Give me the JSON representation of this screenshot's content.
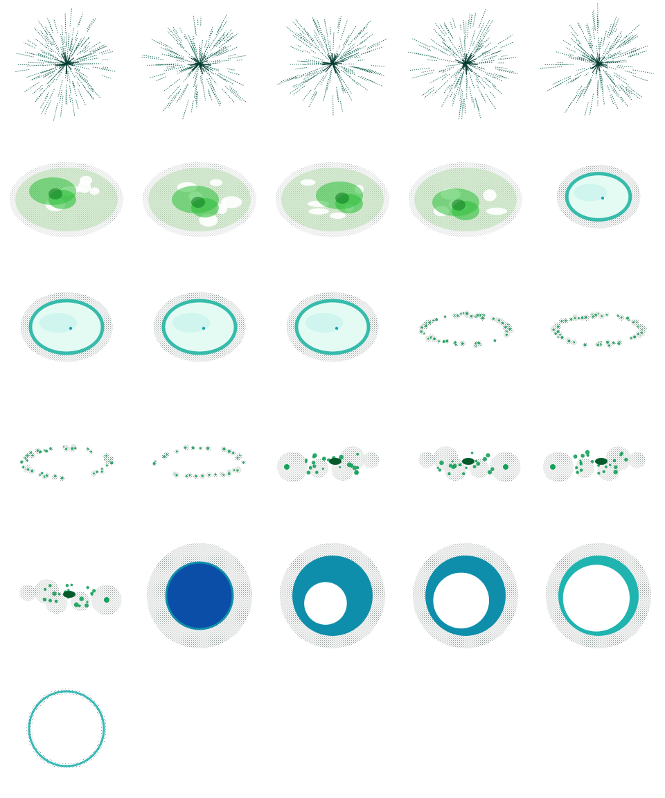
{
  "sprite_sheet": {
    "columns": 5,
    "frame_count": 26,
    "colors": {
      "halo": "#7d8a86",
      "ray": "#0b5e4e",
      "cloud_light": "#a9d8a0",
      "cloud_green": "#2fbf3a",
      "cloud_dark": "#0d7a20",
      "disk_fill": "#e4fbf4",
      "disk_rim": "#17b3a0",
      "knot": "#16a05a",
      "knot_core": "#045a2a",
      "shell_deep": "#0a4ea8",
      "shell_mid": "#0f8eab",
      "shell_light": "#1fb4b0"
    },
    "frames": [
      {
        "name": "starburst-1",
        "stage": "rays"
      },
      {
        "name": "starburst-2",
        "stage": "rays"
      },
      {
        "name": "starburst-3",
        "stage": "rays"
      },
      {
        "name": "starburst-4",
        "stage": "rays"
      },
      {
        "name": "starburst-5",
        "stage": "rays"
      },
      {
        "name": "green-cloud-1",
        "stage": "cloud",
        "phase": 0
      },
      {
        "name": "green-cloud-2",
        "stage": "cloud",
        "phase": 1
      },
      {
        "name": "green-cloud-3",
        "stage": "cloud",
        "phase": 2
      },
      {
        "name": "green-cloud-4",
        "stage": "cloud",
        "phase": 3
      },
      {
        "name": "glowing-disk-1",
        "stage": "disk",
        "scale": 0.78
      },
      {
        "name": "glowing-disk-2",
        "stage": "disk",
        "scale": 0.88
      },
      {
        "name": "glowing-disk-3",
        "stage": "disk",
        "scale": 0.88
      },
      {
        "name": "glowing-disk-4",
        "stage": "disk",
        "scale": 0.88
      },
      {
        "name": "particle-ring-1",
        "stage": "ring",
        "density": 1.0
      },
      {
        "name": "particle-ring-2",
        "stage": "ring",
        "density": 1.0
      },
      {
        "name": "particle-ring-3",
        "stage": "ring",
        "density": 0.75
      },
      {
        "name": "particle-ring-4",
        "stage": "ring",
        "density": 0.5
      },
      {
        "name": "knot-cluster-1",
        "stage": "cluster",
        "phase": 0
      },
      {
        "name": "knot-cluster-2",
        "stage": "cluster",
        "phase": 1
      },
      {
        "name": "knot-cluster-3",
        "stage": "cluster",
        "phase": 2
      },
      {
        "name": "knot-cluster-4",
        "stage": "cluster",
        "phase": 3
      },
      {
        "name": "blue-sphere",
        "stage": "sphere",
        "hole": 0
      },
      {
        "name": "crescent-shell-1",
        "stage": "shell",
        "hole": 0.55
      },
      {
        "name": "crescent-shell-2",
        "stage": "shell",
        "hole": 0.72
      },
      {
        "name": "crescent-shell-3",
        "stage": "shell",
        "hole": 0.86
      },
      {
        "name": "thin-ring",
        "stage": "thinring",
        "hole": 0.96
      }
    ]
  }
}
